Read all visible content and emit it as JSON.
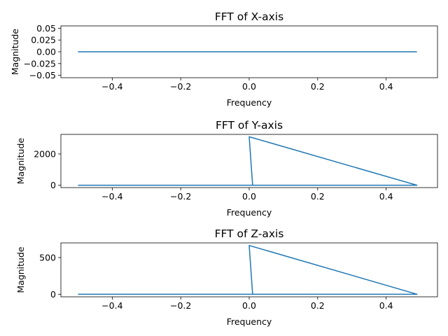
{
  "chart_data": [
    {
      "type": "line",
      "title": "FFT of X-axis",
      "xlabel": "Frequency",
      "ylabel": "Magnitude",
      "xlim": [
        -0.55,
        0.55
      ],
      "ylim": [
        -0.055,
        0.055
      ],
      "xticks": [
        -0.4,
        -0.2,
        0.0,
        0.2,
        0.4
      ],
      "xticklabels": [
        "−0.4",
        "−0.2",
        "0.0",
        "0.2",
        "0.4"
      ],
      "yticks": [
        -0.05,
        -0.025,
        0.0,
        0.025,
        0.05
      ],
      "yticklabels": [
        "−0.05",
        "−0.025",
        "0.00",
        "0.025",
        "0.05"
      ],
      "series": [
        {
          "color": "#1f77b4",
          "points": [
            [
              -0.5,
              0
            ],
            [
              0.49,
              0
            ]
          ]
        }
      ]
    },
    {
      "type": "line",
      "title": "FFT of Y-axis",
      "xlabel": "Frequency",
      "ylabel": "Magnitude",
      "xlim": [
        -0.55,
        0.55
      ],
      "ylim": [
        -150,
        3250
      ],
      "xticks": [
        -0.4,
        -0.2,
        0.0,
        0.2,
        0.4
      ],
      "xticklabels": [
        "−0.4",
        "−0.2",
        "0.0",
        "0.2",
        "0.4"
      ],
      "yticks": [
        0,
        2000
      ],
      "yticklabels": [
        "0",
        "2000"
      ],
      "series": [
        {
          "color": "#1f77b4",
          "points": [
            [
              -0.5,
              0
            ],
            [
              0.0,
              0
            ],
            [
              0.49,
              0
            ],
            [
              0.0,
              3100
            ],
            [
              0.01,
              0
            ],
            [
              0.0,
              0
            ],
            [
              -0.5,
              0
            ]
          ]
        }
      ]
    },
    {
      "type": "line",
      "title": "FFT of Z-axis",
      "xlabel": "Frequency",
      "ylabel": "Magnitude",
      "xlim": [
        -0.55,
        0.55
      ],
      "ylim": [
        -35,
        700
      ],
      "xticks": [
        -0.4,
        -0.2,
        0.0,
        0.2,
        0.4
      ],
      "xticklabels": [
        "−0.4",
        "−0.2",
        "0.0",
        "0.2",
        "0.4"
      ],
      "yticks": [
        0,
        500
      ],
      "yticklabels": [
        "0",
        "500"
      ],
      "series": [
        {
          "color": "#1f77b4",
          "points": [
            [
              -0.5,
              0
            ],
            [
              0.0,
              0
            ],
            [
              0.49,
              0
            ],
            [
              0.0,
              665
            ],
            [
              0.01,
              0
            ],
            [
              0.0,
              0
            ],
            [
              -0.5,
              0
            ]
          ]
        }
      ]
    }
  ]
}
